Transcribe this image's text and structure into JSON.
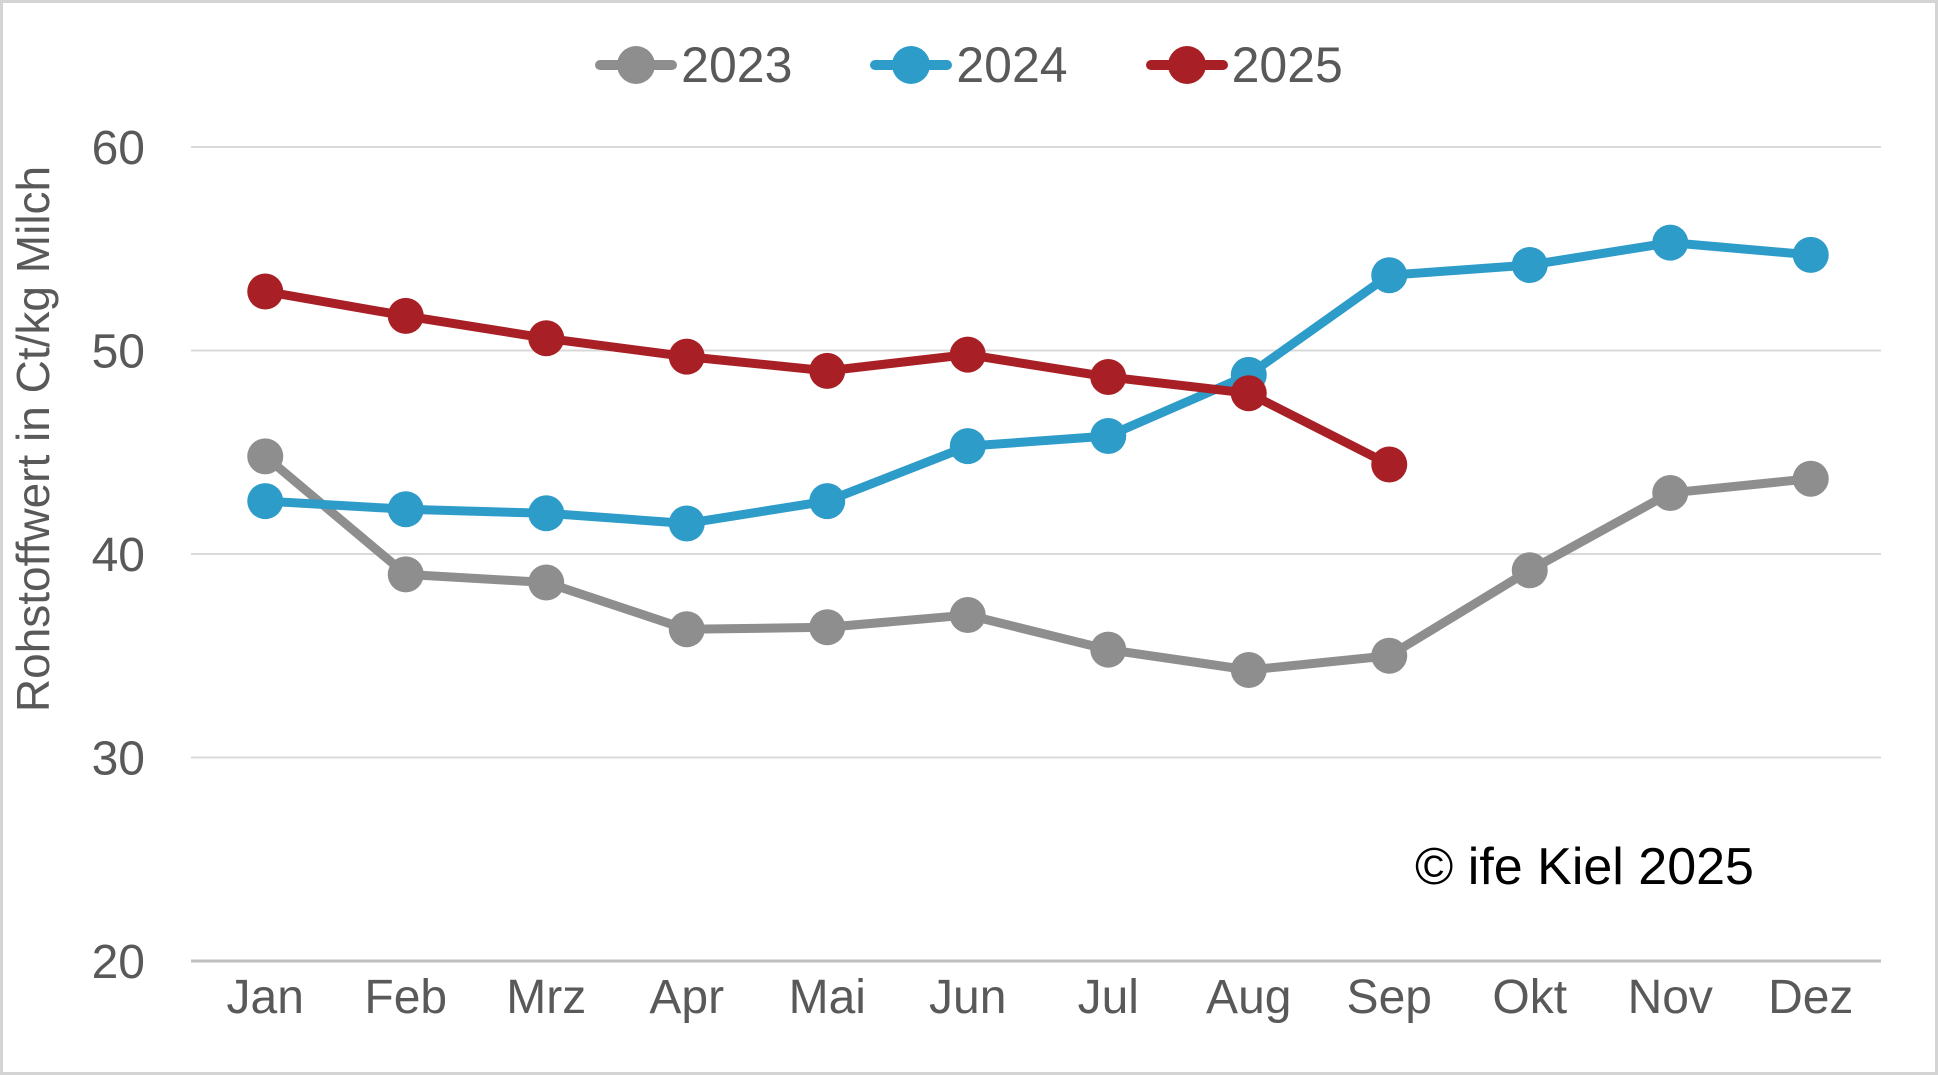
{
  "chart_data": {
    "type": "line",
    "title": "",
    "categories": [
      "Jan",
      "Feb",
      "Mrz",
      "Apr",
      "Mai",
      "Jun",
      "Jul",
      "Aug",
      "Sep",
      "Okt",
      "Nov",
      "Dez"
    ],
    "series": [
      {
        "name": "2023",
        "color": "#8E8E8E",
        "values": [
          44.8,
          39.0,
          38.6,
          36.3,
          36.4,
          37.0,
          35.3,
          34.3,
          35.0,
          39.2,
          43.0,
          43.7
        ]
      },
      {
        "name": "2024",
        "color": "#2E9CC9",
        "values": [
          42.6,
          42.2,
          42.0,
          41.5,
          42.6,
          45.3,
          45.8,
          48.8,
          53.7,
          54.2,
          55.3,
          54.7
        ]
      },
      {
        "name": "2025",
        "color": "#A82025",
        "values": [
          52.9,
          51.7,
          50.6,
          49.7,
          49.0,
          49.8,
          48.7,
          47.9,
          44.4
        ]
      }
    ],
    "xlabel": "",
    "ylabel": "Rohstoffwert in Ct/kg Milch",
    "ylim": [
      20,
      60
    ],
    "yticks": [
      60,
      50,
      40,
      30,
      20
    ],
    "grid": true,
    "legend_position": "top"
  },
  "annotation": {
    "copyright": "© ife Kiel 2025"
  },
  "colors": {
    "grid": "#d9d9d9",
    "axis": "#bfbfbf",
    "tick_text": "#595959",
    "copyright": "#000000",
    "border": "#d4d4d4"
  }
}
